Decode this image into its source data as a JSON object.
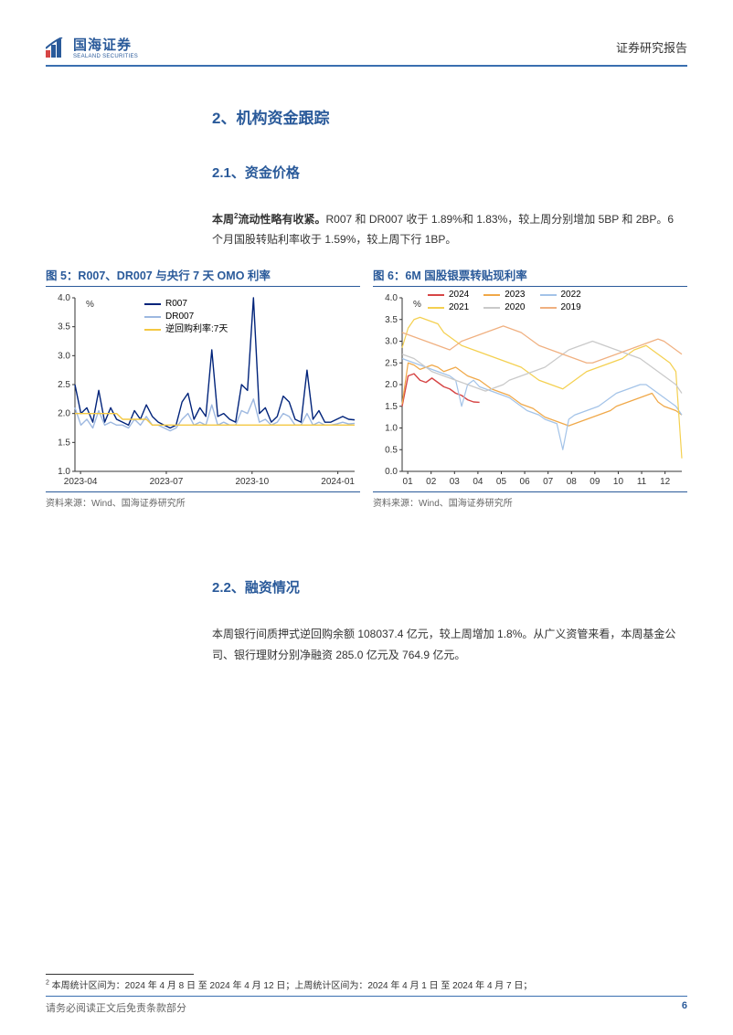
{
  "header": {
    "logo_cn": "国海证券",
    "logo_en": "SEALAND SECURITIES",
    "report_type": "证券研究报告"
  },
  "section2": {
    "title": "2、机构资金跟踪",
    "s21_title": "2.1、资金价格",
    "s21_body_prefix": "本周",
    "s21_body_bold": "流动性略有收紧。",
    "s21_body_rest": "R007 和 DR007 收于 1.89%和 1.83%，较上周分别增加 5BP 和 2BP。6 个月国股转贴利率收于 1.59%，较上周下行 1BP。",
    "s22_title": "2.2、融资情况",
    "s22_body": "本周银行间质押式逆回购余额 108037.4 亿元，较上周增加 1.8%。从广义资管来看，本周基金公司、银行理财分别净融资 285.0 亿元及 764.9 亿元。"
  },
  "chart5": {
    "title": "图 5：R007、DR007 与央行 7 天 OMO 利率",
    "type": "line",
    "y_unit": "%",
    "ylim": [
      1.0,
      4.0
    ],
    "ytick_step": 0.5,
    "x_labels": [
      "2023-04",
      "2023-07",
      "2023-10",
      "2024-01"
    ],
    "background_color": "#ffffff",
    "grid_color": "#d9d9d9",
    "axis_color": "#333333",
    "label_fontsize": 10,
    "series": [
      {
        "name": "R007",
        "color": "#00237a",
        "width": 1.4,
        "values": [
          2.5,
          2.0,
          2.1,
          1.85,
          2.4,
          1.85,
          2.1,
          1.9,
          1.85,
          1.8,
          2.05,
          1.9,
          2.15,
          1.95,
          1.85,
          1.8,
          1.75,
          1.8,
          2.2,
          2.35,
          1.9,
          2.1,
          1.95,
          3.1,
          1.95,
          2.0,
          1.9,
          1.85,
          2.5,
          2.4,
          4.0,
          2.0,
          2.1,
          1.85,
          1.95,
          2.3,
          2.2,
          1.9,
          1.85,
          2.75,
          1.9,
          2.05,
          1.85,
          1.85,
          1.9,
          1.95,
          1.9,
          1.89
        ]
      },
      {
        "name": "DR007",
        "color": "#9db8e0",
        "width": 1.4,
        "values": [
          2.1,
          1.8,
          1.9,
          1.75,
          2.05,
          1.8,
          1.85,
          1.8,
          1.8,
          1.75,
          1.9,
          1.8,
          1.95,
          1.8,
          1.8,
          1.75,
          1.7,
          1.75,
          1.9,
          2.0,
          1.8,
          1.85,
          1.8,
          2.15,
          1.8,
          1.85,
          1.8,
          1.8,
          2.05,
          2.0,
          2.25,
          1.85,
          1.9,
          1.8,
          1.85,
          2.0,
          1.95,
          1.8,
          1.8,
          2.0,
          1.8,
          1.85,
          1.8,
          1.8,
          1.82,
          1.85,
          1.82,
          1.83
        ]
      },
      {
        "name": "逆回购利率:7天",
        "color": "#f4c842",
        "width": 1.4,
        "values": [
          2.0,
          2.0,
          2.0,
          2.0,
          2.0,
          2.0,
          2.0,
          2.0,
          1.9,
          1.9,
          1.9,
          1.9,
          1.9,
          1.8,
          1.8,
          1.8,
          1.8,
          1.8,
          1.8,
          1.8,
          1.8,
          1.8,
          1.8,
          1.8,
          1.8,
          1.8,
          1.8,
          1.8,
          1.8,
          1.8,
          1.8,
          1.8,
          1.8,
          1.8,
          1.8,
          1.8,
          1.8,
          1.8,
          1.8,
          1.8,
          1.8,
          1.8,
          1.8,
          1.8,
          1.8,
          1.8,
          1.8,
          1.8
        ]
      }
    ],
    "source": "资料来源：Wind、国海证券研究所"
  },
  "chart6": {
    "title": "图 6：6M 国股银票转贴现利率",
    "type": "line",
    "y_unit": "%",
    "ylim": [
      0.0,
      4.0
    ],
    "ytick_step": 0.5,
    "x_labels": [
      "01",
      "02",
      "03",
      "04",
      "05",
      "06",
      "07",
      "08",
      "09",
      "10",
      "11",
      "12"
    ],
    "background_color": "#ffffff",
    "grid_color": "#d9d9d9",
    "axis_color": "#333333",
    "label_fontsize": 10,
    "legend_layout": [
      [
        "2024",
        "2023",
        "2022"
      ],
      [
        "2021",
        "2020",
        "2019"
      ]
    ],
    "series": [
      {
        "name": "2024",
        "color": "#d64545",
        "width": 1.4,
        "values": [
          1.5,
          2.2,
          2.25,
          2.1,
          2.05,
          2.15,
          2.05,
          1.95,
          1.9,
          1.8,
          1.75,
          1.65,
          1.6,
          1.59
        ],
        "partial": 14
      },
      {
        "name": "2023",
        "color": "#f0a848",
        "width": 1.2,
        "values": [
          1.55,
          2.5,
          2.45,
          2.35,
          2.4,
          2.45,
          2.4,
          2.3,
          2.35,
          2.4,
          2.3,
          2.2,
          2.15,
          2.1,
          2.0,
          1.9,
          1.85,
          1.8,
          1.75,
          1.65,
          1.55,
          1.5,
          1.45,
          1.35,
          1.25,
          1.2,
          1.15,
          1.1,
          1.05,
          1.1,
          1.15,
          1.2,
          1.25,
          1.3,
          1.35,
          1.4,
          1.5,
          1.55,
          1.6,
          1.65,
          1.7,
          1.75,
          1.8,
          1.6,
          1.5,
          1.45,
          1.4,
          1.3
        ]
      },
      {
        "name": "2022",
        "color": "#a3c3e8",
        "width": 1.2,
        "values": [
          2.6,
          2.55,
          2.5,
          2.45,
          2.4,
          2.35,
          2.3,
          2.25,
          2.2,
          2.1,
          1.5,
          2.0,
          2.1,
          1.95,
          1.9,
          1.85,
          1.8,
          1.75,
          1.7,
          1.6,
          1.5,
          1.4,
          1.35,
          1.3,
          1.2,
          1.15,
          1.1,
          0.5,
          1.2,
          1.3,
          1.35,
          1.4,
          1.45,
          1.5,
          1.6,
          1.7,
          1.8,
          1.85,
          1.9,
          1.95,
          2.0,
          2.0,
          1.9,
          1.8,
          1.7,
          1.6,
          1.5,
          1.3
        ]
      },
      {
        "name": "2021",
        "color": "#f4d050",
        "width": 1.2,
        "values": [
          2.85,
          3.3,
          3.5,
          3.55,
          3.5,
          3.45,
          3.4,
          3.2,
          3.1,
          3.0,
          2.9,
          2.85,
          2.8,
          2.75,
          2.7,
          2.65,
          2.6,
          2.55,
          2.5,
          2.45,
          2.4,
          2.3,
          2.2,
          2.1,
          2.05,
          2.0,
          1.95,
          1.9,
          2.0,
          2.1,
          2.2,
          2.3,
          2.35,
          2.4,
          2.45,
          2.5,
          2.55,
          2.6,
          2.7,
          2.8,
          2.85,
          2.9,
          2.8,
          2.7,
          2.6,
          2.5,
          2.3,
          0.3
        ]
      },
      {
        "name": "2020",
        "color": "#c9c9c9",
        "width": 1.2,
        "values": [
          2.7,
          2.65,
          2.6,
          2.5,
          2.4,
          2.3,
          2.25,
          2.2,
          2.15,
          2.1,
          2.05,
          2.0,
          1.95,
          1.9,
          1.85,
          1.9,
          1.95,
          2.0,
          2.1,
          2.15,
          2.2,
          2.25,
          2.3,
          2.35,
          2.4,
          2.5,
          2.6,
          2.7,
          2.8,
          2.85,
          2.9,
          2.95,
          3.0,
          2.95,
          2.9,
          2.85,
          2.8,
          2.75,
          2.7,
          2.65,
          2.6,
          2.5,
          2.4,
          2.3,
          2.2,
          2.1,
          2.0,
          1.8
        ]
      },
      {
        "name": "2019",
        "color": "#f0b080",
        "width": 1.2,
        "values": [
          3.2,
          3.15,
          3.1,
          3.05,
          3.0,
          2.95,
          2.9,
          2.85,
          2.8,
          2.9,
          3.0,
          3.05,
          3.1,
          3.15,
          3.2,
          3.25,
          3.3,
          3.35,
          3.3,
          3.25,
          3.2,
          3.1,
          3.0,
          2.9,
          2.85,
          2.8,
          2.75,
          2.7,
          2.65,
          2.6,
          2.55,
          2.5,
          2.5,
          2.55,
          2.6,
          2.65,
          2.7,
          2.75,
          2.8,
          2.85,
          2.9,
          2.95,
          3.0,
          3.05,
          3.0,
          2.9,
          2.8,
          2.7
        ]
      }
    ],
    "source": "资料来源：Wind、国海证券研究所"
  },
  "footnote": {
    "marker": "2",
    "text": " 本周统计区间为：2024 年 4 月 8 日 至 2024 年 4 月 12 日；上周统计区间为：2024 年 4 月 1 日 至 2024 年 4 月 7 日；"
  },
  "footer": {
    "disclaimer": "请务必阅读正文后免责条款部分",
    "page": "6"
  }
}
